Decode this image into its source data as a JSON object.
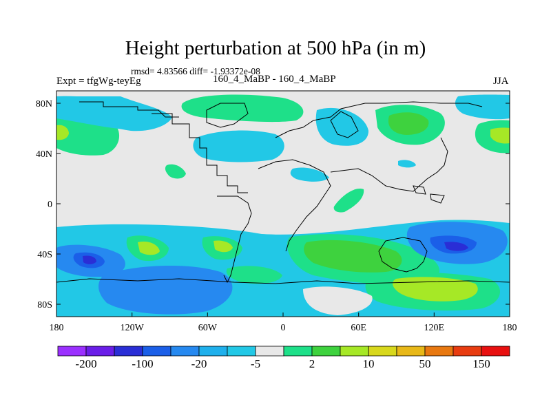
{
  "title": "Height perturbation at 500 hPa (in m)",
  "stats": "rmsd= 4.83566 diff= -1.93372e-08",
  "left_label": "Expt = tfgWg-teyEg",
  "center_label": "160_4_MaBP - 160_4_MaBP",
  "right_label": "JJA",
  "y_ticks": [
    "80N",
    "40N",
    "0",
    "40S",
    "80S"
  ],
  "x_ticks": [
    "180",
    "120W",
    "60W",
    "0",
    "60E",
    "120E",
    "180"
  ],
  "colorbar": {
    "colors": [
      "#9b30ff",
      "#6a1ee8",
      "#2a2ed6",
      "#1b5fe8",
      "#2689f0",
      "#1fb0ec",
      "#22c8e6",
      "#e8e8e8",
      "#1ee089",
      "#3ed23e",
      "#a6e826",
      "#d8d81c",
      "#e8b818",
      "#e87810",
      "#e83c10",
      "#e81010"
    ],
    "labels": [
      "-200",
      "-100",
      "-20",
      "-5",
      "2",
      "10",
      "50",
      "150"
    ]
  }
}
